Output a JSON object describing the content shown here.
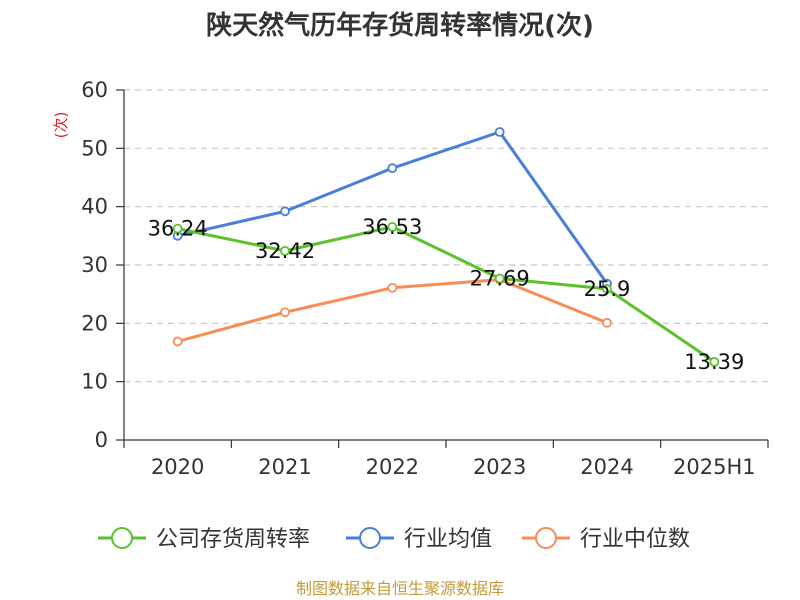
{
  "title": "陕天然气历年存货周转率情况(次)",
  "source": "制图数据来自恒生聚源数据库",
  "chart_data": {
    "type": "line",
    "title": "陕天然气历年存货周转率情况(次)",
    "xlabel": "",
    "ylabel": "(次)",
    "categories": [
      "2020",
      "2021",
      "2022",
      "2023",
      "2024",
      "2025H1"
    ],
    "ylim": [
      0,
      60
    ],
    "yticks": [
      0,
      10,
      20,
      30,
      40,
      50,
      60
    ],
    "grid": true,
    "legend_position": "bottom",
    "series": [
      {
        "name": "公司存货周转率",
        "color": "#5bc22e",
        "values": [
          36.24,
          32.42,
          36.53,
          27.69,
          25.9,
          13.39
        ],
        "labels": [
          "36.24",
          "32.42",
          "36.53",
          "27.69",
          "25.9",
          "13.39"
        ]
      },
      {
        "name": "行业均值",
        "color": "#4a7fd9",
        "values": [
          35.0,
          39.2,
          46.6,
          52.8,
          26.8,
          null
        ]
      },
      {
        "name": "行业中位数",
        "color": "#f78c55",
        "values": [
          16.9,
          21.9,
          26.1,
          27.5,
          20.1,
          null
        ]
      }
    ]
  }
}
